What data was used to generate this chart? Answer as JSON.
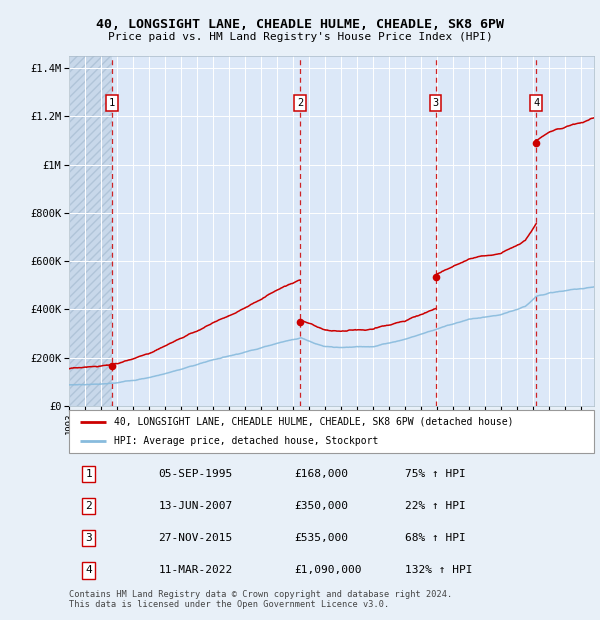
{
  "title": "40, LONGSIGHT LANE, CHEADLE HULME, CHEADLE, SK8 6PW",
  "subtitle": "Price paid vs. HM Land Registry's House Price Index (HPI)",
  "background_color": "#e8f0f8",
  "plot_bg_color": "#dce8f8",
  "ylim": [
    0,
    1450000
  ],
  "yticks": [
    0,
    200000,
    400000,
    600000,
    800000,
    1000000,
    1200000,
    1400000
  ],
  "ytick_labels": [
    "£0",
    "£200K",
    "£400K",
    "£600K",
    "£800K",
    "£1M",
    "£1.2M",
    "£1.4M"
  ],
  "xlim_start": 1993.0,
  "xlim_end": 2025.8,
  "sale_dates": [
    1995.68,
    2007.44,
    2015.9,
    2022.19
  ],
  "sale_prices": [
    168000,
    350000,
    535000,
    1090000
  ],
  "sale_labels": [
    "1",
    "2",
    "3",
    "4"
  ],
  "red_line_color": "#cc0000",
  "blue_line_color": "#88bbdd",
  "dot_color": "#cc0000",
  "vline_color": "#cc0000",
  "legend_entries": [
    "40, LONGSIGHT LANE, CHEADLE HULME, CHEADLE, SK8 6PW (detached house)",
    "HPI: Average price, detached house, Stockport"
  ],
  "table_rows": [
    [
      "1",
      "05-SEP-1995",
      "£168,000",
      "75% ↑ HPI"
    ],
    [
      "2",
      "13-JUN-2007",
      "£350,000",
      "22% ↑ HPI"
    ],
    [
      "3",
      "27-NOV-2015",
      "£535,000",
      "68% ↑ HPI"
    ],
    [
      "4",
      "11-MAR-2022",
      "£1,090,000",
      "132% ↑ HPI"
    ]
  ],
  "footer": "Contains HM Land Registry data © Crown copyright and database right 2024.\nThis data is licensed under the Open Government Licence v3.0."
}
